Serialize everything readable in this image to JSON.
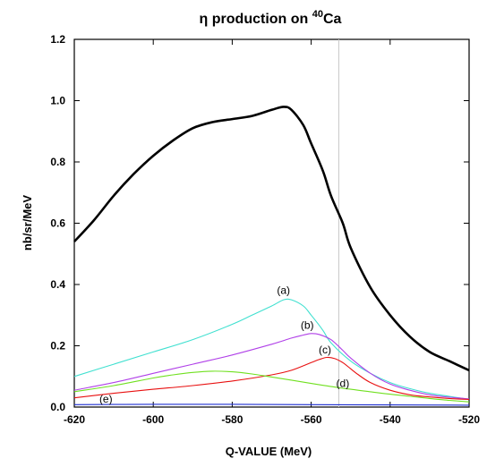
{
  "chart_data": {
    "type": "line",
    "title": {
      "symbol": "η",
      "text": " production on ",
      "superscript": "40",
      "element": "Ca"
    },
    "xlabel": "Q-VALUE (MeV)",
    "ylabel": "nb/sr/MeV",
    "xlim": [
      -620,
      -520
    ],
    "ylim": [
      0,
      1.2
    ],
    "xticks": [
      -620,
      -600,
      -580,
      -560,
      -540,
      -520
    ],
    "xtick_labels": [
      "-620",
      "-600",
      "-580",
      "-560",
      "-540",
      "-520"
    ],
    "yticks": [
      0.0,
      0.2,
      0.4,
      0.6,
      0.8,
      1.0,
      1.2
    ],
    "ytick_labels": [
      "0.0",
      "0.2",
      "0.4",
      "0.6",
      "0.8",
      "1.0",
      "1.2"
    ],
    "reference_line_x": -553,
    "grid": false,
    "series": [
      {
        "color": "#000000",
        "x": [
          -620,
          -615,
          -610,
          -605,
          -600,
          -595,
          -590,
          -585,
          -580,
          -575,
          -570,
          -567,
          -565,
          -562,
          -560,
          -557,
          -555,
          -552,
          -550,
          -545,
          -540,
          -535,
          -530,
          -525,
          -520
        ],
        "y": [
          0.54,
          0.61,
          0.69,
          0.76,
          0.82,
          0.87,
          0.91,
          0.93,
          0.94,
          0.95,
          0.97,
          0.98,
          0.97,
          0.92,
          0.86,
          0.77,
          0.69,
          0.6,
          0.52,
          0.39,
          0.3,
          0.23,
          0.18,
          0.15,
          0.12
        ]
      },
      {
        "label": "(a)",
        "color": "#40e0d0",
        "x": [
          -620,
          -610,
          -600,
          -590,
          -580,
          -575,
          -570,
          -567,
          -565,
          -562,
          -560,
          -557,
          -555,
          -550,
          -545,
          -540,
          -535,
          -530,
          -525,
          -520
        ],
        "y": [
          0.1,
          0.14,
          0.18,
          0.22,
          0.27,
          0.3,
          0.33,
          0.35,
          0.35,
          0.33,
          0.3,
          0.25,
          0.21,
          0.15,
          0.11,
          0.08,
          0.06,
          0.045,
          0.035,
          0.025
        ]
      },
      {
        "label": "(b)",
        "color": "#b040e8",
        "x": [
          -620,
          -610,
          -600,
          -590,
          -580,
          -570,
          -565,
          -562,
          -560,
          -558,
          -555,
          -552,
          -550,
          -545,
          -540,
          -535,
          -530,
          -525,
          -520
        ],
        "y": [
          0.055,
          0.08,
          0.11,
          0.14,
          0.17,
          0.205,
          0.225,
          0.235,
          0.24,
          0.237,
          0.22,
          0.185,
          0.16,
          0.11,
          0.075,
          0.055,
          0.04,
          0.032,
          0.027
        ]
      },
      {
        "label": "(c)",
        "color": "#e81010",
        "x": [
          -620,
          -610,
          -600,
          -590,
          -580,
          -570,
          -565,
          -560,
          -558,
          -556,
          -554,
          -552,
          -550,
          -548,
          -545,
          -540,
          -535,
          -530,
          -525,
          -520
        ],
        "y": [
          0.03,
          0.045,
          0.058,
          0.07,
          0.085,
          0.105,
          0.12,
          0.145,
          0.155,
          0.162,
          0.158,
          0.145,
          0.125,
          0.105,
          0.08,
          0.055,
          0.04,
          0.033,
          0.028,
          0.025
        ]
      },
      {
        "label": "(d)",
        "color": "#70e020",
        "x": [
          -620,
          -610,
          -600,
          -595,
          -590,
          -585,
          -580,
          -575,
          -570,
          -565,
          -560,
          -555,
          -550,
          -545,
          -540,
          -535,
          -530,
          -525,
          -520
        ],
        "y": [
          0.05,
          0.07,
          0.095,
          0.105,
          0.113,
          0.117,
          0.115,
          0.108,
          0.098,
          0.088,
          0.077,
          0.067,
          0.058,
          0.05,
          0.042,
          0.035,
          0.028,
          0.022,
          0.017
        ]
      },
      {
        "label": "(e)",
        "color": "#2030d0",
        "x": [
          -620,
          -600,
          -580,
          -560,
          -540,
          -520
        ],
        "y": [
          0.008,
          0.009,
          0.009,
          0.008,
          0.007,
          0.006
        ]
      }
    ],
    "annotations": [
      {
        "text": "(a)",
        "x": -567,
        "y": 0.37
      },
      {
        "text": "(b)",
        "x": -561,
        "y": 0.255
      },
      {
        "text": "(c)",
        "x": -556.5,
        "y": 0.175
      },
      {
        "text": "(d)",
        "x": -552,
        "y": 0.065
      },
      {
        "text": "(e)",
        "x": -612,
        "y": 0.015
      }
    ]
  }
}
